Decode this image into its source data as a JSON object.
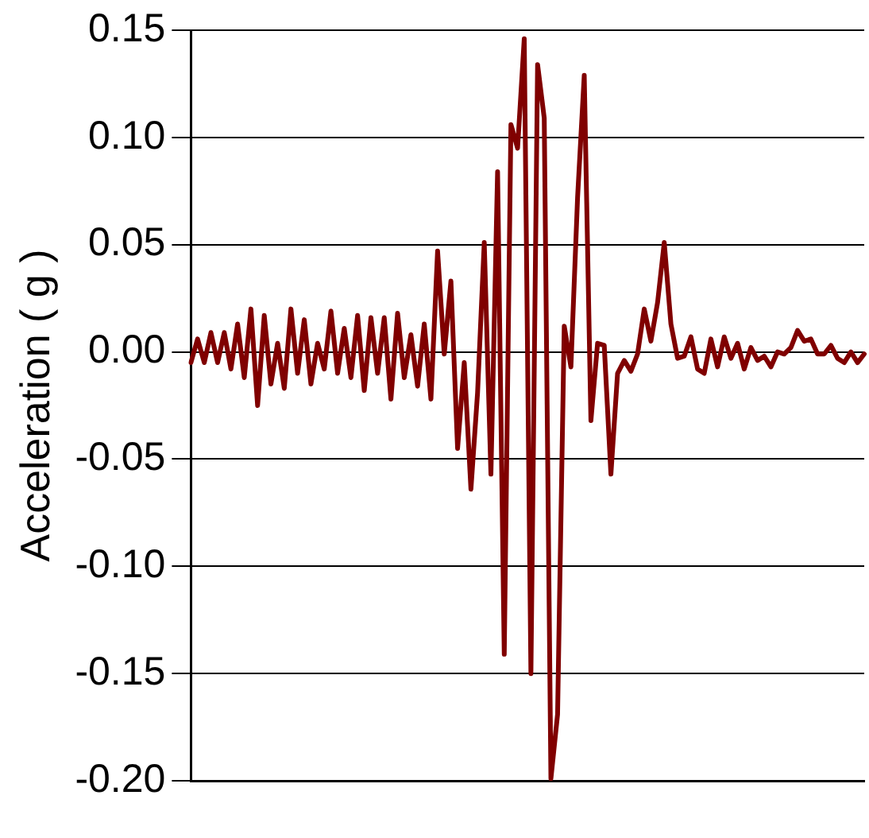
{
  "chart_data": {
    "type": "line",
    "ylabel": "Acceleration ( g )",
    "grid": "y",
    "marker": "none",
    "line_style": "solid",
    "categories": [
      null,
      null,
      null,
      null,
      null,
      null,
      null,
      null,
      null,
      null,
      null,
      null,
      null,
      null,
      null,
      null,
      null,
      null,
      null,
      null,
      null,
      null,
      null,
      null,
      null,
      null,
      null,
      null,
      null,
      null,
      null,
      null,
      null,
      null,
      null,
      null,
      null,
      null,
      null,
      null,
      null,
      null,
      null,
      null,
      null,
      null,
      null,
      null,
      null,
      null,
      null,
      null,
      null,
      null,
      null,
      null,
      null,
      null,
      null,
      null,
      null,
      null,
      null,
      null,
      null,
      null,
      null,
      null,
      null,
      null,
      null,
      null,
      null,
      null,
      null,
      null,
      null,
      null,
      null,
      null,
      null,
      null,
      null,
      null,
      null,
      null,
      null,
      null,
      null,
      null,
      null,
      null,
      null,
      null,
      null,
      null,
      null,
      null,
      null,
      null,
      null,
      null
    ],
    "ylim": [
      -0.2,
      0.15
    ],
    "yticks": [
      {
        "value": -0.2,
        "label": "-0.20"
      },
      {
        "value": -0.15,
        "label": "-0.15"
      },
      {
        "value": -0.1,
        "label": "-0.10"
      },
      {
        "value": -0.05,
        "label": "-0.05"
      },
      {
        "value": 0,
        "label": "0.00"
      },
      {
        "value": 0.05,
        "label": "0.05"
      },
      {
        "value": 0.1,
        "label": "0.10"
      },
      {
        "value": 0.15,
        "label": "0.15"
      }
    ],
    "series": [
      {
        "color": "#800000",
        "values": [
          -0.005,
          0.006,
          -0.005,
          0.009,
          -0.005,
          0.009,
          -0.008,
          0.013,
          -0.012,
          0.02,
          -0.025,
          0.017,
          -0.015,
          0.004,
          -0.017,
          0.02,
          -0.01,
          0.015,
          -0.015,
          0.004,
          -0.008,
          0.019,
          -0.01,
          0.011,
          -0.012,
          0.017,
          -0.018,
          0.016,
          -0.01,
          0.016,
          -0.022,
          0.018,
          -0.012,
          0.008,
          -0.016,
          0.013,
          -0.022,
          0.047,
          -0.001,
          0.033,
          -0.045,
          -0.005,
          -0.064,
          -0.019,
          0.051,
          -0.057,
          0.084,
          -0.141,
          0.106,
          0.095,
          0.146,
          -0.15,
          0.134,
          0.109,
          -0.199,
          -0.169,
          0.012,
          -0.007,
          0.072,
          0.129,
          -0.032,
          0.004,
          0.003,
          -0.057,
          -0.01,
          -0.004,
          -0.009,
          -0.001,
          0.02,
          0.005,
          0.023,
          0.051,
          0.013,
          -0.003,
          -0.002,
          0.007,
          -0.008,
          -0.01,
          0.006,
          -0.007,
          0.007,
          -0.003,
          0.004,
          -0.008,
          0.002,
          -0.004,
          -0.002,
          -0.007,
          0.0,
          -0.001,
          0.002,
          0.01,
          0.005,
          0.006,
          -0.001,
          -0.001,
          0.003,
          -0.003,
          -0.005,
          0.0,
          -0.005,
          -0.001
        ]
      }
    ]
  }
}
